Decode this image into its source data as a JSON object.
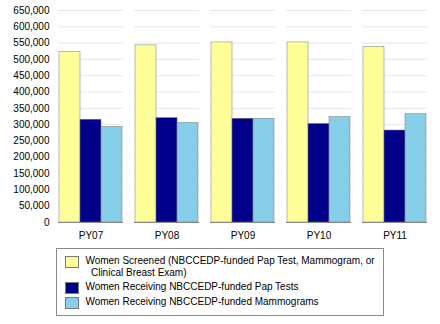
{
  "chart_data": {
    "type": "bar",
    "categories": [
      "PY07",
      "PY08",
      "PY09",
      "PY10",
      "PY11"
    ],
    "series": [
      {
        "name": "Women Screened (NBCCEDP-funded Pap Test, Mammogram, or\n  Clinical Breast Exam)",
        "color": "#FFFF99",
        "values": [
          522000,
          543000,
          552000,
          552000,
          538000
        ]
      },
      {
        "name": "Women Receiving NBCCEDP-funded Pap Tests",
        "color": "#00008B",
        "values": [
          315000,
          320000,
          318000,
          302000,
          282000
        ]
      },
      {
        "name": "Women Receiving NBCCEDP-funded Mammograms",
        "color": "#87CEEB",
        "values": [
          293000,
          305000,
          318000,
          323000,
          332000
        ]
      }
    ],
    "ylim": [
      0,
      650000
    ],
    "yticks": [
      0,
      {
        "value": 50000,
        "label": "50,000"
      },
      {
        "value": 100000,
        "label": "100,000"
      },
      {
        "value": 150000,
        "label": "150,000"
      },
      {
        "value": 200000,
        "label": "200,000"
      },
      {
        "value": 250000,
        "label": "250,000"
      },
      {
        "value": 300000,
        "label": "300,000"
      },
      {
        "value": 350000,
        "label": "350,000"
      },
      {
        "value": 400000,
        "label": "400,000"
      },
      {
        "value": 450000,
        "label": "450,000"
      },
      {
        "value": 500000,
        "label": "500,000"
      },
      {
        "value": 550000,
        "label": "550,000"
      },
      {
        "value": 600000,
        "label": "600,000"
      },
      {
        "value": 650000,
        "label": "650,000"
      }
    ],
    "grid": true,
    "legend": "bottom"
  }
}
